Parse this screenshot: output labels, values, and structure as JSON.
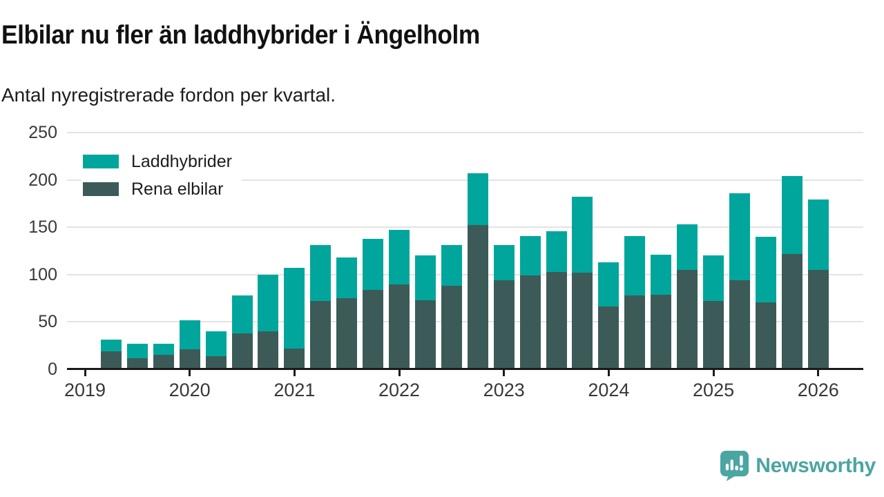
{
  "header": {
    "title": "Elbilar nu fler än laddhybrider i Ängelholm",
    "subtitle": "Antal nyregistrerade fordon per kvartal."
  },
  "chart_data": {
    "type": "bar",
    "stacked": true,
    "title": "Elbilar nu fler än laddhybrider i Ängelholm",
    "subtitle": "Antal nyregistrerade fordon per kvartal.",
    "x": [
      "2019 Q2",
      "2019 Q3",
      "2019 Q4",
      "2020 Q1",
      "2020 Q2",
      "2020 Q3",
      "2020 Q4",
      "2021 Q1",
      "2021 Q2",
      "2021 Q3",
      "2021 Q4",
      "2022 Q1",
      "2022 Q2",
      "2022 Q3",
      "2022 Q4",
      "2023 Q1",
      "2023 Q2",
      "2023 Q3",
      "2023 Q4",
      "2024 Q1",
      "2024 Q2",
      "2024 Q3",
      "2024 Q4",
      "2025 Q1",
      "2025 Q2",
      "2025 Q3",
      "2025 Q4",
      "2026 Q1"
    ],
    "series": [
      {
        "name": "Laddhybrider",
        "color": "#00a69c",
        "values": [
          12,
          15,
          12,
          31,
          26,
          40,
          60,
          85,
          59,
          43,
          54,
          57,
          47,
          43,
          55,
          37,
          42,
          43,
          80,
          47,
          63,
          42,
          48,
          48,
          92,
          69,
          82,
          74
        ]
      },
      {
        "name": "Rena elbilar",
        "color": "#3c5b58",
        "values": [
          19,
          12,
          15,
          21,
          14,
          38,
          40,
          22,
          72,
          75,
          84,
          90,
          73,
          88,
          152,
          94,
          99,
          103,
          102,
          66,
          78,
          79,
          105,
          72,
          94,
          71,
          122,
          105
        ]
      }
    ],
    "stack_order_bottom_to_top": [
      "Rena elbilar",
      "Laddhybrider"
    ],
    "x_tick_labels": [
      "2019",
      "2020",
      "2021",
      "2022",
      "2023",
      "2024",
      "2025",
      "2026"
    ],
    "y_ticks": [
      0,
      50,
      100,
      150,
      200,
      250
    ],
    "ylim": [
      0,
      250
    ],
    "grid": "horizontal",
    "legend_position": "top-left-inside",
    "axis_color": "#1a1a1a",
    "gridline_color": "#e3e3e3"
  },
  "legend": {
    "items": [
      {
        "label": "Laddhybrider",
        "color": "#00a69c"
      },
      {
        "label": "Rena elbilar",
        "color": "#3c5b58"
      }
    ]
  },
  "footer": {
    "brand": "Newsworthy",
    "brand_color": "#4aa5a2"
  }
}
